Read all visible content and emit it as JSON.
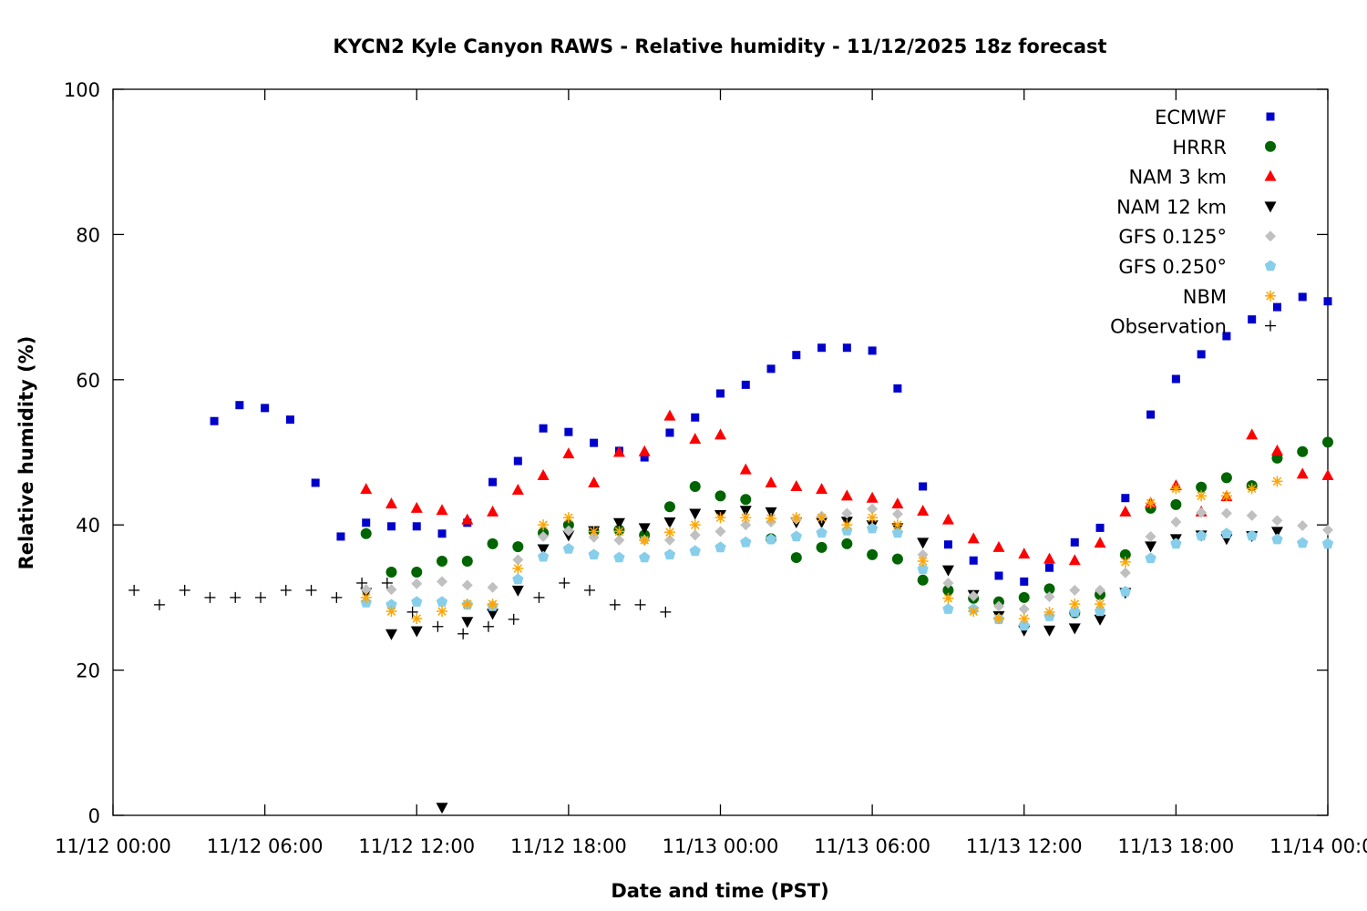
{
  "chart_data": {
    "type": "scatter",
    "title": "KYCN2 Kyle Canyon RAWS - Relative humidity - 11/12/2025 18z forecast",
    "xlabel": "Date and time (PST)",
    "ylabel": "Relative humidity (%)",
    "xlim": [
      "11/12 00:00",
      "11/14 00:00"
    ],
    "ylim": [
      0,
      100
    ],
    "x_ticks": [
      "11/12 00:00",
      "11/12 06:00",
      "11/12 12:00",
      "11/12 18:00",
      "11/13 00:00",
      "11/13 06:00",
      "11/13 12:00",
      "11/13 18:00",
      "11/14 00:00"
    ],
    "y_ticks": [
      0,
      20,
      40,
      60,
      80,
      100
    ],
    "grid": false,
    "legend_position": "top-right",
    "x": [
      "11/12 04:00",
      "11/12 05:00",
      "11/12 06:00",
      "11/12 07:00",
      "11/12 08:00",
      "11/12 09:00",
      "11/12 10:00",
      "11/12 11:00",
      "11/12 12:00",
      "11/12 13:00",
      "11/12 14:00",
      "11/12 15:00",
      "11/12 16:00",
      "11/12 17:00",
      "11/12 18:00",
      "11/12 19:00",
      "11/12 20:00",
      "11/12 21:00",
      "11/12 22:00",
      "11/12 23:00",
      "11/13 00:00",
      "11/13 01:00",
      "11/13 02:00",
      "11/13 03:00",
      "11/13 04:00",
      "11/13 05:00",
      "11/13 06:00",
      "11/13 07:00",
      "11/13 08:00",
      "11/13 09:00",
      "11/13 10:00",
      "11/13 11:00",
      "11/13 12:00",
      "11/13 13:00",
      "11/13 14:00",
      "11/13 15:00",
      "11/13 16:00",
      "11/13 17:00",
      "11/13 18:00",
      "11/13 19:00",
      "11/13 20:00",
      "11/13 21:00",
      "11/13 22:00",
      "11/13 23:00",
      "11/14 00:00"
    ],
    "series": [
      {
        "name": "ECMWF",
        "marker": "square",
        "color": "#0000cc",
        "values": [
          54.3,
          56.5,
          56.1,
          54.5,
          45.8,
          38.4,
          40.3,
          39.8,
          39.8,
          38.8,
          40.3,
          45.9,
          48.8,
          53.3,
          52.8,
          51.3,
          50.2,
          49.3,
          52.7,
          54.8,
          58.1,
          59.3,
          61.5,
          63.4,
          64.4,
          64.4,
          64.0,
          58.8,
          45.3,
          37.3,
          35.1,
          33.0,
          32.2,
          34.1,
          37.6,
          39.6,
          43.7,
          55.2,
          60.1,
          63.5,
          66.0,
          68.3,
          70.0,
          71.4,
          70.8
        ]
      },
      {
        "name": "HRRR",
        "marker": "circle",
        "color": "#006400",
        "values": [
          null,
          null,
          null,
          null,
          null,
          null,
          38.8,
          33.5,
          33.5,
          35.0,
          35.0,
          37.4,
          37.0,
          38.9,
          40.0,
          39.1,
          39.3,
          38.6,
          42.5,
          45.3,
          44.0,
          43.5,
          38.1,
          35.5,
          36.9,
          37.4,
          35.9,
          35.3,
          32.4,
          31.0,
          29.9,
          29.4,
          30.0,
          31.2,
          27.9,
          30.4,
          35.9,
          42.3,
          42.8,
          45.2,
          46.5,
          45.4,
          49.2,
          50.1,
          51.4
        ]
      },
      {
        "name": "NAM 3 km",
        "marker": "triangle-up",
        "color": "#ff0000",
        "values": [
          null,
          null,
          null,
          null,
          null,
          null,
          44.9,
          42.9,
          42.3,
          42.0,
          40.7,
          41.8,
          44.8,
          46.8,
          49.8,
          45.8,
          50.0,
          50.1,
          55.0,
          51.8,
          52.4,
          47.6,
          45.8,
          45.3,
          44.9,
          44.0,
          43.7,
          42.9,
          41.9,
          40.7,
          38.1,
          36.9,
          36.0,
          35.3,
          35.1,
          37.5,
          41.8,
          43.0,
          45.4,
          41.8,
          43.9,
          52.4,
          50.2,
          47.0,
          46.8
        ]
      },
      {
        "name": "NAM 12 km",
        "marker": "triangle-down",
        "color": "#000000",
        "values": [
          null,
          null,
          null,
          null,
          null,
          null,
          30.7,
          25.0,
          25.4,
          1.1,
          26.7,
          27.8,
          31.0,
          36.7,
          38.6,
          39.2,
          40.3,
          39.6,
          40.4,
          41.6,
          41.4,
          42.0,
          41.8,
          40.4,
          40.4,
          40.5,
          40.0,
          39.6,
          37.6,
          33.8,
          30.4,
          27.5,
          25.5,
          25.5,
          25.8,
          27.0,
          30.7,
          37.1,
          38.1,
          38.6,
          38.1,
          38.5,
          39.1,
          null,
          null
        ]
      },
      {
        "name": "GFS 0.125°",
        "marker": "diamond",
        "color": "#c0c0c0",
        "values": [
          null,
          null,
          null,
          null,
          null,
          null,
          31.1,
          31.1,
          31.9,
          32.2,
          31.7,
          31.4,
          35.2,
          38.4,
          39.2,
          38.3,
          37.9,
          37.9,
          37.9,
          38.6,
          39.1,
          40.0,
          40.4,
          40.8,
          41.2,
          41.6,
          42.2,
          41.5,
          35.9,
          32.0,
          30.2,
          28.8,
          28.4,
          30.1,
          31.0,
          31.0,
          33.4,
          38.4,
          40.4,
          41.7,
          41.6,
          41.3,
          40.6,
          39.9,
          39.3
        ]
      },
      {
        "name": "GFS 0.250°",
        "marker": "pentagon",
        "color": "#87ceeb",
        "values": [
          null,
          null,
          null,
          null,
          null,
          null,
          29.3,
          29.0,
          29.4,
          29.4,
          29.0,
          28.8,
          32.5,
          35.6,
          36.7,
          35.9,
          35.5,
          35.5,
          35.9,
          36.4,
          36.9,
          37.6,
          38.0,
          38.4,
          38.9,
          39.2,
          39.5,
          38.9,
          33.9,
          28.4,
          28.4,
          27.0,
          26.1,
          27.4,
          28.0,
          28.1,
          30.8,
          35.4,
          37.4,
          38.5,
          38.8,
          38.5,
          38.0,
          37.5,
          37.4
        ]
      },
      {
        "name": "NBM",
        "marker": "asterisk",
        "color": "#ffa500",
        "values": [
          null,
          null,
          null,
          null,
          null,
          null,
          30.0,
          28.1,
          27.1,
          28.1,
          29.1,
          29.1,
          34.0,
          40.0,
          41.0,
          39.1,
          39.1,
          37.9,
          39.0,
          40.0,
          41.0,
          41.0,
          40.9,
          41.0,
          41.0,
          40.0,
          41.0,
          40.0,
          35.0,
          29.9,
          28.1,
          27.1,
          27.1,
          28.0,
          29.1,
          29.1,
          34.9,
          43.0,
          45.0,
          44.0,
          44.0,
          45.0,
          46.0,
          null,
          null
        ]
      },
      {
        "name": "Observation",
        "marker": "plus",
        "color": "#000000",
        "x": [
          "11/12 00:50",
          "11/12 01:50",
          "11/12 02:50",
          "11/12 03:50",
          "11/12 04:50",
          "11/12 05:50",
          "11/12 06:50",
          "11/12 07:50",
          "11/12 08:50",
          "11/12 09:50",
          "11/12 10:50",
          "11/12 11:50",
          "11/12 12:50",
          "11/12 13:50",
          "11/12 14:50",
          "11/12 15:50",
          "11/12 16:50",
          "11/12 17:50",
          "11/12 18:50",
          "11/12 19:50",
          "11/12 20:50",
          "11/12 21:50"
        ],
        "values": [
          31,
          29,
          31,
          30,
          30,
          30,
          31,
          31,
          30,
          32,
          32,
          28,
          26,
          25,
          26,
          27,
          30,
          32,
          31,
          29,
          29,
          28
        ]
      }
    ]
  }
}
